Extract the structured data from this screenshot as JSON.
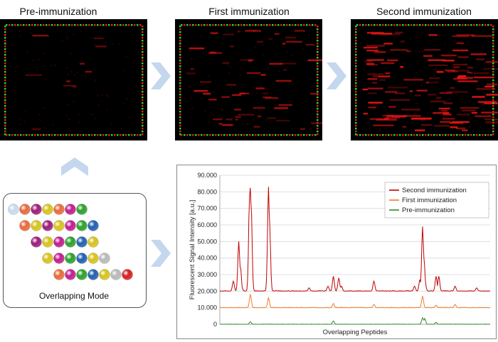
{
  "panels": [
    {
      "title": "Pre-immunization",
      "level": 0
    },
    {
      "title": "First immunization",
      "level": 1
    },
    {
      "title": "Second immunization",
      "level": 2
    }
  ],
  "arrow_color": "#c5d7ee",
  "mode": {
    "label": "Overlapping Mode",
    "rows": [
      [
        "#c7d9ef",
        "#e66a3a",
        "#9b1c7a",
        "#d6c21a",
        "#e66a3a",
        "#c21b8e",
        "#2aa02a"
      ],
      [
        "#e66a3a",
        "#d6c21a",
        "#9b1c7a",
        "#d6c21a",
        "#c21b8e",
        "#2aa02a",
        "#1f5fb0"
      ],
      [
        "#9b1c7a",
        "#d6c21a",
        "#c21b8e",
        "#2aa02a",
        "#1f5fb0",
        "#d6c21a"
      ],
      [
        "#d6c21a",
        "#c21b8e",
        "#2aa02a",
        "#1f5fb0",
        "#d6c21a",
        "#b8b8b8"
      ],
      [
        "#e66a3a",
        "#c21b8e",
        "#2aa02a",
        "#1f5fb0",
        "#d6c21a",
        "#b8b8b8",
        "#d41f1f"
      ]
    ]
  },
  "chart_data": {
    "type": "line",
    "xlabel": "Overlapping Peptides",
    "ylabel": "Fluorescent Signal Intensity [a.u.]",
    "ylim": [
      0,
      90000
    ],
    "yticks": [
      "0",
      "10.000",
      "20.000",
      "30.000",
      "40.000",
      "50.000",
      "60.000",
      "70.000",
      "80.000",
      "90.000"
    ],
    "xlim": [
      0,
      100
    ],
    "legend_position": "top-right",
    "series": [
      {
        "name": "Second immunization",
        "color": "#c00000",
        "baseline": 20000,
        "peaks": [
          [
            5,
            26000
          ],
          [
            7,
            50000
          ],
          [
            7.6,
            35000
          ],
          [
            8,
            23000
          ],
          [
            11,
            77000
          ],
          [
            11.3,
            83000
          ],
          [
            11.6,
            70000
          ],
          [
            18,
            83000
          ],
          [
            18.4,
            60000
          ],
          [
            33,
            22000
          ],
          [
            40,
            23000
          ],
          [
            42,
            29000
          ],
          [
            44,
            28000
          ],
          [
            45,
            23000
          ],
          [
            57,
            26000
          ],
          [
            72,
            23000
          ],
          [
            74,
            27000
          ],
          [
            75,
            59000
          ],
          [
            75.5,
            40000
          ],
          [
            76,
            24000
          ],
          [
            80,
            29000
          ],
          [
            81,
            29000
          ],
          [
            87,
            23000
          ],
          [
            95,
            22000
          ]
        ]
      },
      {
        "name": "First immunization",
        "color": "#ed7d31",
        "baseline": 10000,
        "peaks": [
          [
            11.3,
            18000
          ],
          [
            18,
            16000
          ],
          [
            42,
            12500
          ],
          [
            57,
            12000
          ],
          [
            75,
            17000
          ],
          [
            80,
            11500
          ],
          [
            87,
            12000
          ]
        ]
      },
      {
        "name": "Pre-immunization",
        "color": "#2e8b2e",
        "baseline": 0,
        "peaks": [
          [
            11.3,
            1500
          ],
          [
            42,
            2000
          ],
          [
            75,
            4000
          ],
          [
            75.8,
            3500
          ],
          [
            80,
            1200
          ]
        ]
      }
    ]
  }
}
